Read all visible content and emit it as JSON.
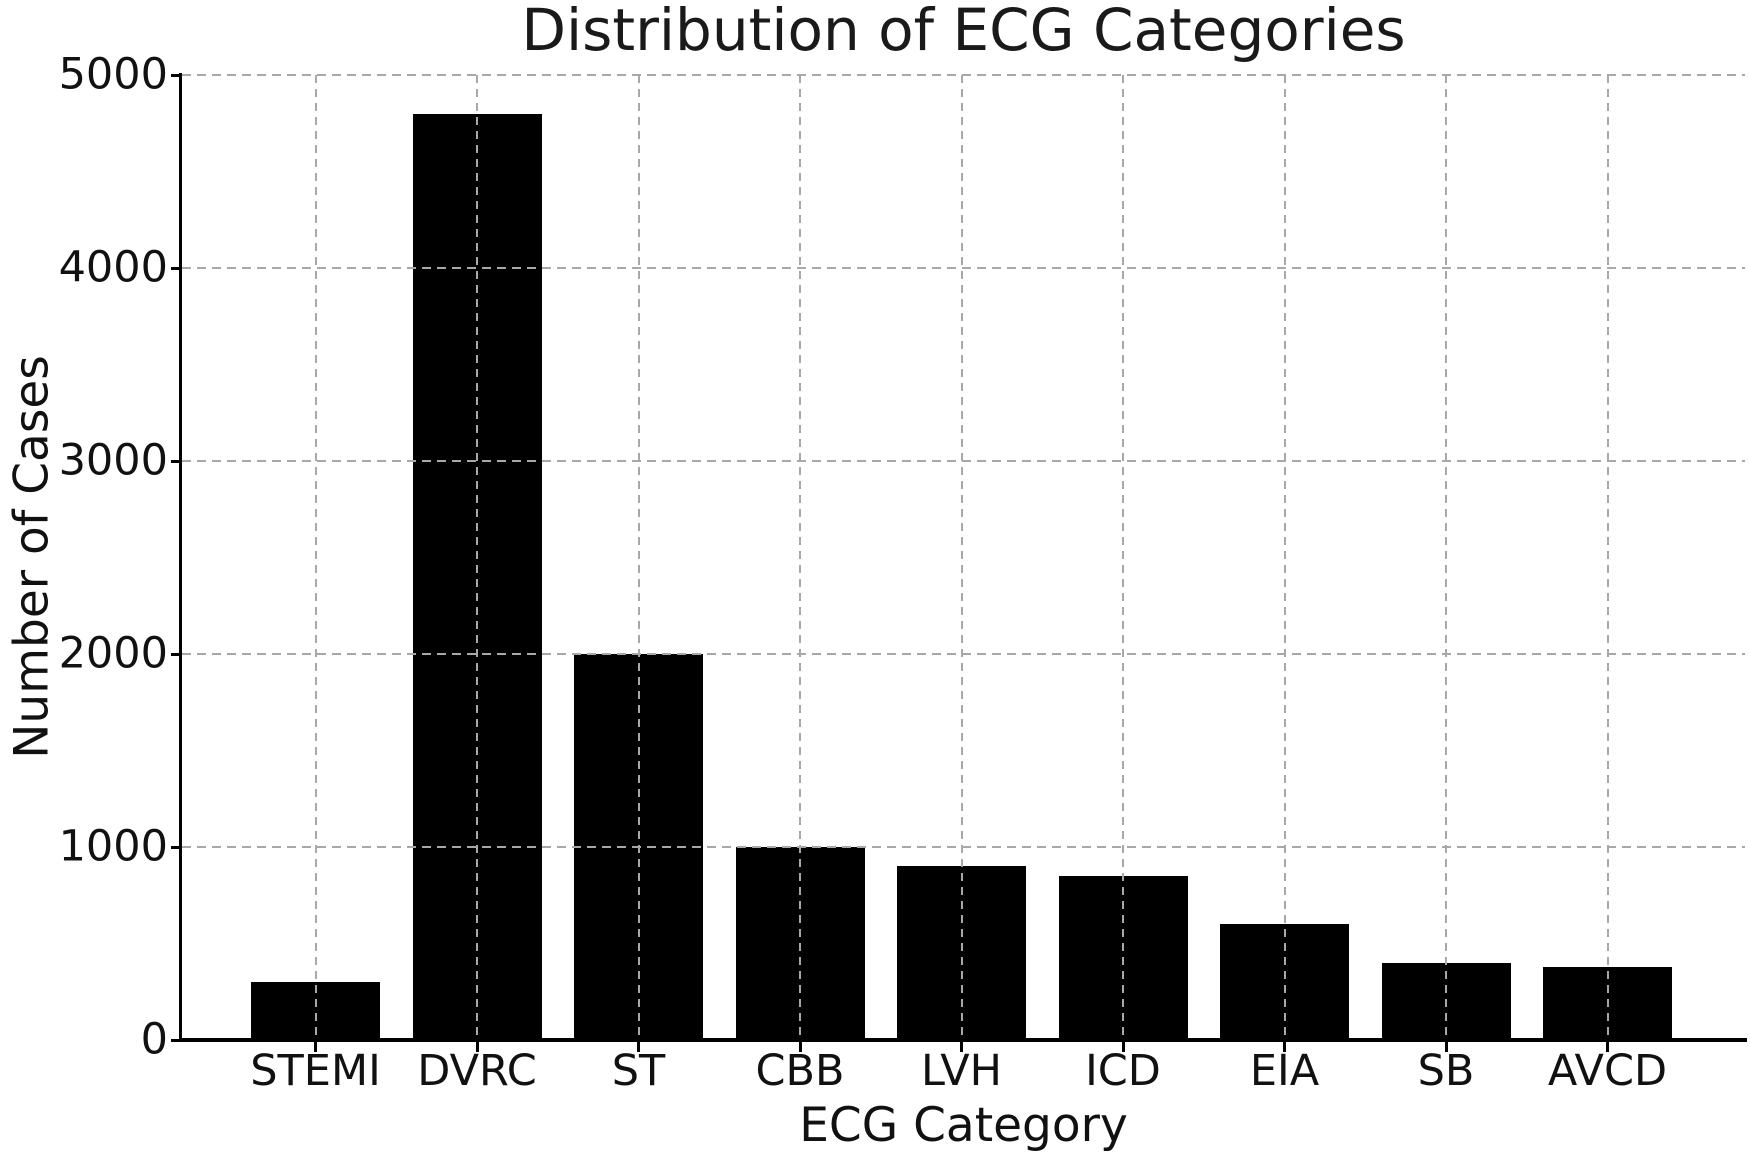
{
  "chart_data": {
    "type": "bar",
    "title": "Distribution of ECG Categories",
    "xlabel": "ECG Category",
    "ylabel": "Number of Cases",
    "categories": [
      "STEMI",
      "DVRC",
      "ST",
      "CBB",
      "LVH",
      "ICD",
      "EIA",
      "SB",
      "AVCD"
    ],
    "values": [
      300,
      4800,
      2000,
      1000,
      900,
      850,
      600,
      400,
      380
    ],
    "ylim": [
      0,
      5000
    ],
    "yticks": [
      0,
      1000,
      2000,
      3000,
      4000,
      5000
    ],
    "grid": "dashed-both-axes-above-bars",
    "legend": "none",
    "colors": {
      "bar": "#000000",
      "grid": "#a8a8a8",
      "axis": "#000000",
      "text": "#111111",
      "background": "#ffffff"
    }
  }
}
